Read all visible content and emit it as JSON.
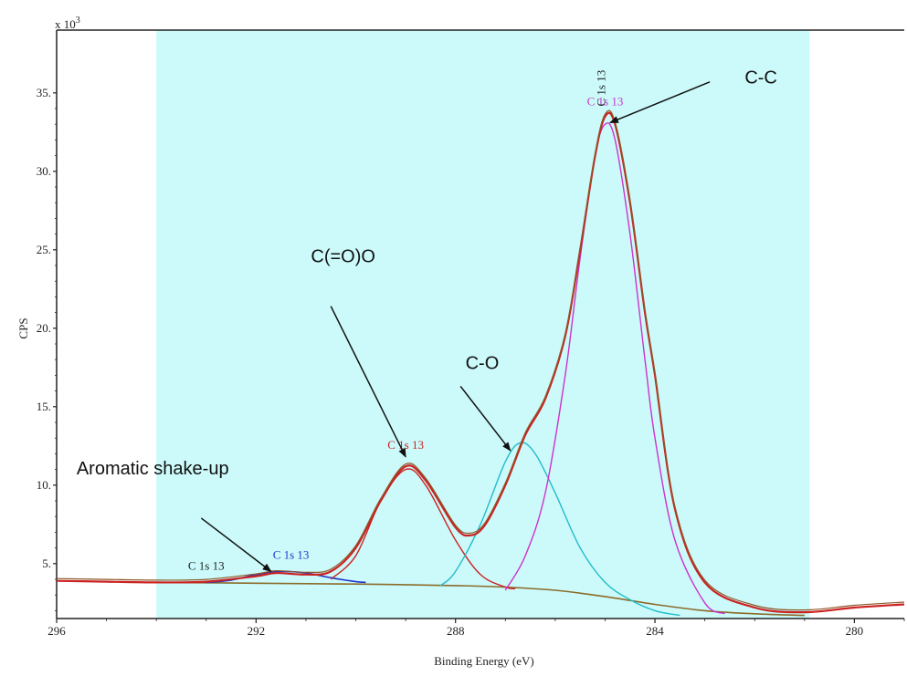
{
  "chart_data": {
    "type": "line",
    "xlabel": "Binding Energy (eV)",
    "ylabel": "CPS",
    "y_multiplier_label": "x 10",
    "y_multiplier_exponent": "3",
    "xlim": [
      296,
      279
    ],
    "ylim": [
      1.5,
      39
    ],
    "x_reversed": true,
    "x_ticks": [
      296,
      292,
      288,
      284,
      280
    ],
    "x_tick_labels": [
      "296",
      "292",
      "288",
      "284",
      "280"
    ],
    "y_ticks": [
      5,
      10,
      15,
      20,
      25,
      30,
      35
    ],
    "y_tick_labels": [
      "5",
      "10",
      "15",
      "20",
      "25",
      "30",
      "35"
    ],
    "fit_region": [
      294,
      280.9
    ],
    "fit_region_color": "#ccfafa",
    "background_level": 3.9,
    "series": [
      {
        "component": "envelope",
        "color": "#cc2222",
        "width": 2.2,
        "x": [
          296.0,
          295.0,
          294.0,
          293.0,
          292.0,
          291.6,
          291.0,
          290.5,
          290.0,
          289.5,
          289.0,
          288.6,
          288.0,
          287.7,
          287.4,
          287.0,
          286.6,
          286.2,
          285.8,
          285.5,
          285.2,
          285.0,
          284.8,
          284.5,
          284.2,
          284.0,
          283.6,
          283.0,
          282.0,
          281.0,
          280.0,
          279.0
        ],
        "y": [
          3.9,
          3.85,
          3.8,
          3.85,
          4.2,
          4.4,
          4.3,
          4.5,
          6.0,
          9.0,
          11.2,
          10.3,
          7.3,
          6.8,
          7.5,
          10.0,
          13.2,
          15.5,
          19.5,
          25.0,
          31.0,
          33.5,
          33.0,
          28.0,
          21.0,
          17.0,
          8.5,
          3.8,
          2.2,
          1.9,
          2.2,
          2.4
        ]
      },
      {
        "component": "C-C",
        "color": "#cc33cc",
        "width": 1.4,
        "x": [
          287.0,
          286.6,
          286.2,
          285.8,
          285.5,
          285.2,
          285.0,
          284.8,
          284.5,
          284.2,
          284.0,
          283.6,
          283.0,
          282.6
        ],
        "y": [
          3.3,
          5.5,
          9.5,
          17.0,
          24.5,
          31.0,
          33.0,
          32.0,
          26.0,
          18.0,
          13.0,
          6.5,
          2.5,
          1.8
        ]
      },
      {
        "component": "C-O",
        "color": "#22bbcc",
        "width": 1.4,
        "x": [
          288.3,
          288.0,
          287.5,
          287.0,
          286.7,
          286.4,
          286.0,
          285.5,
          285.0,
          284.5,
          284.0,
          283.5
        ],
        "y": [
          3.6,
          4.5,
          7.5,
          11.5,
          12.7,
          12.0,
          9.5,
          6.0,
          3.8,
          2.7,
          2.0,
          1.7
        ]
      },
      {
        "component": "C(=O)O",
        "color": "#cc2222",
        "width": 1.4,
        "x": [
          290.5,
          290.0,
          289.5,
          289.0,
          288.6,
          288.0,
          287.5,
          287.0,
          286.8
        ],
        "y": [
          4.0,
          5.5,
          9.0,
          11.0,
          10.0,
          6.5,
          4.3,
          3.5,
          3.4
        ]
      },
      {
        "component": "shake-up",
        "color": "#2233cc",
        "width": 1.6,
        "x": [
          293.0,
          292.5,
          292.0,
          291.5,
          291.0,
          290.5,
          290.0,
          289.8
        ],
        "y": [
          3.8,
          3.95,
          4.3,
          4.5,
          4.4,
          4.1,
          3.85,
          3.8
        ]
      },
      {
        "component": "baseline",
        "color": "#8b6b2a",
        "width": 1.6,
        "x": [
          294.0,
          292.0,
          290.0,
          288.0,
          287.0,
          286.0,
          285.0,
          284.0,
          283.0,
          282.0,
          281.0
        ],
        "y": [
          3.8,
          3.75,
          3.7,
          3.6,
          3.5,
          3.3,
          2.9,
          2.4,
          2.0,
          1.8,
          1.7
        ]
      }
    ],
    "peak_tags": [
      {
        "text": "C 1s 13",
        "x": 293.0,
        "y": 4.6,
        "color": "#222222",
        "rotated": false
      },
      {
        "text": "C 1s 13",
        "x": 291.3,
        "y": 5.3,
        "color": "#2233cc",
        "rotated": false
      },
      {
        "text": "C 1s 13",
        "x": 289.0,
        "y": 12.3,
        "color": "#cc2222",
        "rotated": false
      },
      {
        "text": "C 1s 13",
        "x": 285.0,
        "y": 34.2,
        "color": "#cc33cc",
        "rotated": false
      },
      {
        "text": "C 1s 13",
        "x": 285.0,
        "y": 35.3,
        "color": "#222222",
        "rotated": true
      }
    ],
    "annotations": [
      {
        "text": "C-C",
        "text_x": 282.2,
        "text_y": 35.6,
        "arrow_from_x": 282.9,
        "arrow_from_y": 35.7,
        "arrow_to_x": 284.9,
        "arrow_to_y": 33.1
      },
      {
        "text": "C(=O)O",
        "text_x": 290.9,
        "text_y": 24.2,
        "arrow_from_x": 290.5,
        "arrow_from_y": 21.4,
        "arrow_to_x": 289.0,
        "arrow_to_y": 11.8
      },
      {
        "text": "C-O",
        "text_x": 287.8,
        "text_y": 17.4,
        "arrow_from_x": 287.9,
        "arrow_from_y": 16.3,
        "arrow_to_x": 286.9,
        "arrow_to_y": 12.2
      },
      {
        "text": "Aromatic shake-up",
        "text_x": 295.6,
        "text_y": 10.7,
        "arrow_from_x": 293.1,
        "arrow_from_y": 7.9,
        "arrow_to_x": 291.7,
        "arrow_to_y": 4.5
      }
    ]
  }
}
